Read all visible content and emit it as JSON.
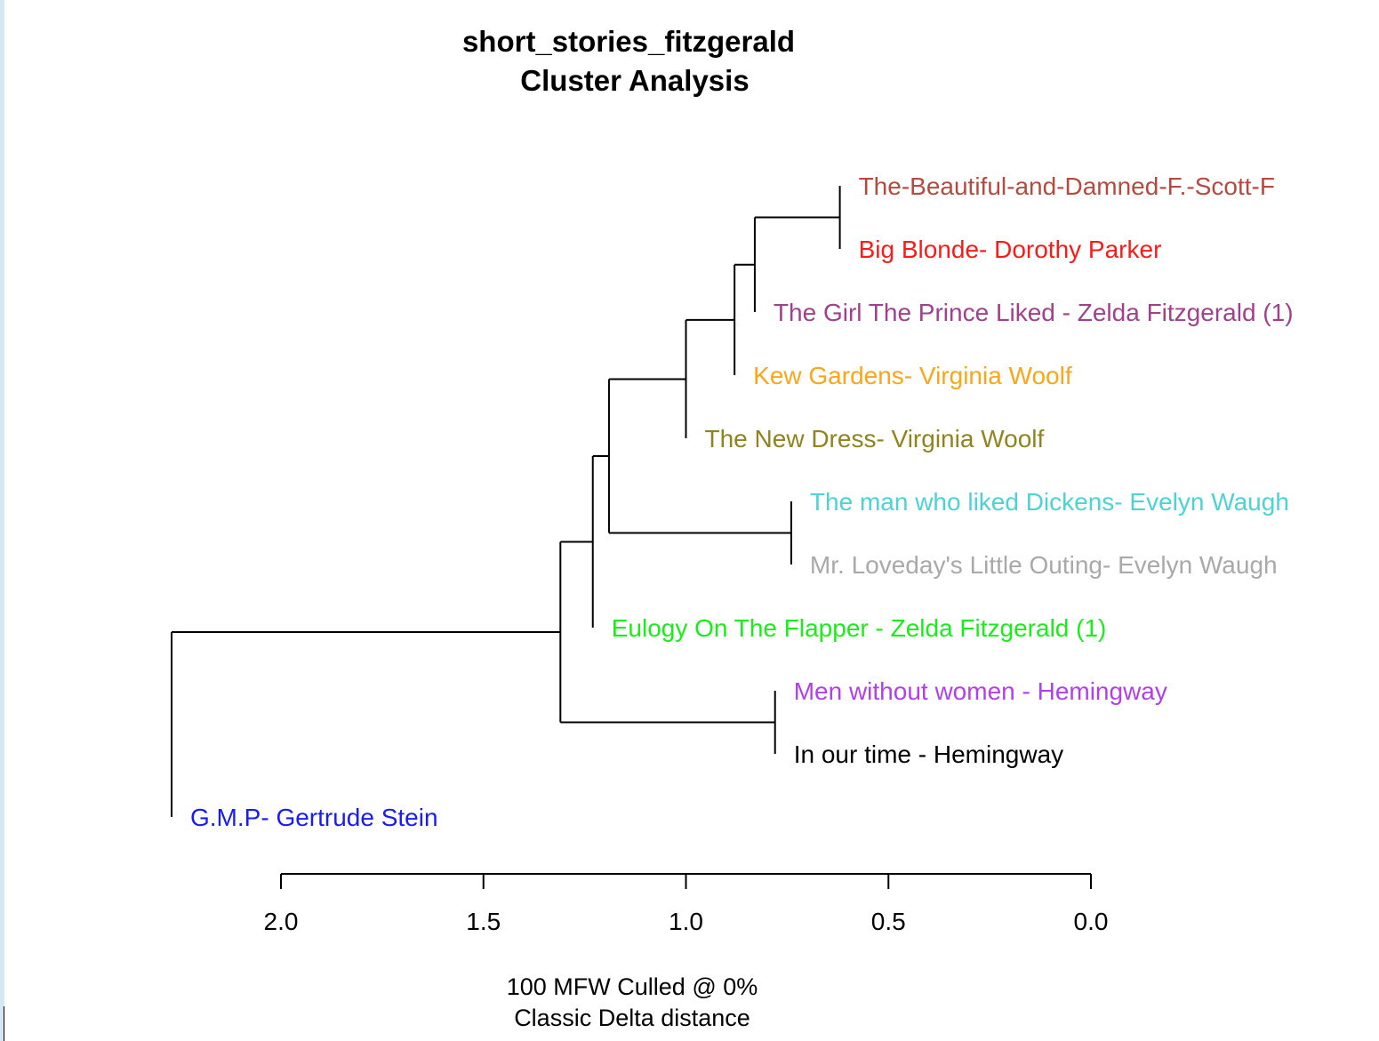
{
  "chart_data": {
    "type": "dendrogram",
    "title": "short_stories_fitzgerald",
    "subtitle": "Cluster Analysis",
    "footer": [
      "100 MFW  Culled @ 0%",
      "Classic Delta distance"
    ],
    "x_axis": {
      "ticks": [
        2.0,
        1.5,
        1.0,
        0.5,
        0.0
      ],
      "tick_labels": [
        "2.0",
        "1.5",
        "1.0",
        "0.5",
        "0.0"
      ],
      "range": [
        2.0,
        0.0
      ]
    },
    "leaves": [
      {
        "label": "The-Beautiful-and-Damned-F.-Scott-F",
        "color": "#b54a40"
      },
      {
        "label": "Big Blonde- Dorothy Parker",
        "color": "#ff1a1a"
      },
      {
        "label": "The Girl The Prince Liked - Zelda Fitzgerald (1)",
        "color": "#a1408d"
      },
      {
        "label": "Kew Gardens- Virginia Woolf",
        "color": "#ffa51a"
      },
      {
        "label": "The New Dress- Virginia Woolf",
        "color": "#8f8420"
      },
      {
        "label": "The man who liked Dickens- Evelyn Waugh",
        "color": "#4fd2d2"
      },
      {
        "label": "Mr. Loveday's Little Outing- Evelyn Waugh",
        "color": "#a9a9a9"
      },
      {
        "label": "Eulogy On The Flapper - Zelda Fitzgerald (1)",
        "color": "#1aee1a"
      },
      {
        "label": "Men without women - Hemingway",
        "color": "#b040ee"
      },
      {
        "label": "In our time - Hemingway",
        "color": "#000000"
      },
      {
        "label": "G.M.P- Gertrude Stein",
        "color": "#1a1aff"
      }
    ],
    "merges": [
      {
        "children": [
          "L0",
          "L1"
        ],
        "height": 0.62
      },
      {
        "children": [
          "M0",
          "L2"
        ],
        "height": 0.83
      },
      {
        "children": [
          "M1",
          "L3"
        ],
        "height": 0.88
      },
      {
        "children": [
          "M2",
          "L4"
        ],
        "height": 1.0
      },
      {
        "children": [
          "L5",
          "L6"
        ],
        "height": 0.74
      },
      {
        "children": [
          "M3",
          "M4"
        ],
        "height": 1.19
      },
      {
        "children": [
          "M5",
          "L7"
        ],
        "height": 1.23
      },
      {
        "children": [
          "L8",
          "L9"
        ],
        "height": 0.78
      },
      {
        "children": [
          "M6",
          "M7"
        ],
        "height": 1.31
      },
      {
        "children": [
          "M8",
          "L10"
        ],
        "height": 2.27
      }
    ]
  }
}
